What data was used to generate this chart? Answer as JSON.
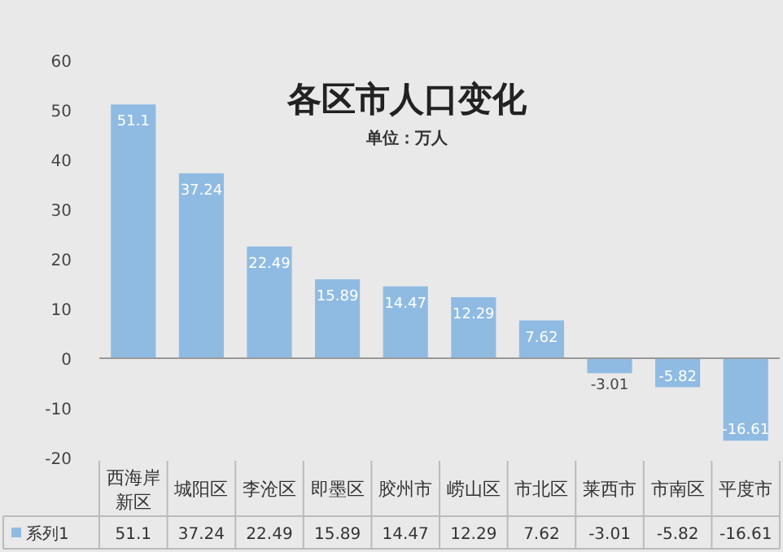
{
  "chart_data": {
    "type": "bar",
    "title": "各区市人口变化",
    "subtitle": "单位：万人",
    "categories": [
      "西海岸新区",
      "城阳区",
      "李沧区",
      "即墨区",
      "胶州市",
      "崂山区",
      "市北区",
      "莱西市",
      "市南区",
      "平度市"
    ],
    "series": [
      {
        "name": "系列1",
        "color": "#8fbbe3",
        "values": [
          51.1,
          37.24,
          22.49,
          15.89,
          14.47,
          12.29,
          7.62,
          -3.01,
          -5.82,
          -16.61
        ],
        "value_labels": [
          "51.1",
          "37.24",
          "22.49",
          "15.89",
          "14.47",
          "12.29",
          "7.62",
          "-3.01",
          "-5.82",
          "-16.61"
        ]
      }
    ],
    "ylim": [
      -20,
      60
    ],
    "yticks": [
      -20,
      -10,
      0,
      10,
      20,
      30,
      40,
      50,
      60
    ],
    "legend": "bottom"
  }
}
